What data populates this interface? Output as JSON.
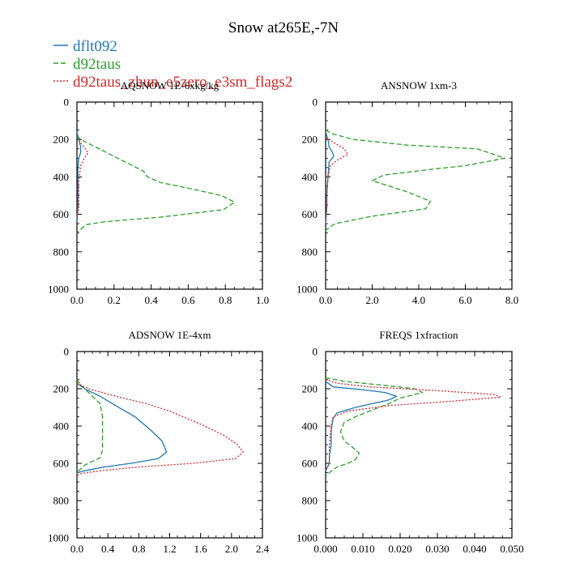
{
  "figure": {
    "title": "Snow at265E,-7N"
  },
  "legend": [
    {
      "name": "dflt092",
      "color": "#1f77b4",
      "dash": "solid"
    },
    {
      "name": "d92taus",
      "color": "#2ca02c",
      "dash": "dashed"
    },
    {
      "name": "d92taus_zhun_e5zero_e3sm_flags2",
      "color": "#d62728",
      "dash": "dotted"
    }
  ],
  "chart_data": [
    {
      "type": "line",
      "title": "AQSNOW  1E-6xkg/kg",
      "xlim": [
        0,
        1.0
      ],
      "ylim": [
        1000,
        0
      ],
      "xticks": [
        "0.0",
        "0.2",
        "0.4",
        "0.6",
        "0.8",
        "1.0"
      ],
      "yticks": [
        "0",
        "200",
        "400",
        "600",
        "800",
        "1000"
      ],
      "series": [
        {
          "name": "dflt092",
          "points": [
            [
              0.0,
              160
            ],
            [
              0.01,
              200
            ],
            [
              0.02,
              240
            ],
            [
              0.02,
              270
            ],
            [
              0.01,
              300
            ],
            [
              0.005,
              360
            ],
            [
              0.005,
              450
            ],
            [
              0.005,
              550
            ],
            [
              0.003,
              600
            ],
            [
              0.0,
              640
            ]
          ]
        },
        {
          "name": "d92taus",
          "points": [
            [
              0.0,
              180
            ],
            [
              0.02,
              200
            ],
            [
              0.06,
              220
            ],
            [
              0.22,
              300
            ],
            [
              0.36,
              370
            ],
            [
              0.38,
              400
            ],
            [
              0.45,
              430
            ],
            [
              0.6,
              460
            ],
            [
              0.78,
              500
            ],
            [
              0.85,
              535
            ],
            [
              0.79,
              575
            ],
            [
              0.45,
              615
            ],
            [
              0.15,
              640
            ],
            [
              0.05,
              655
            ],
            [
              0.02,
              680
            ],
            [
              0.0,
              700
            ]
          ]
        },
        {
          "name": "d92taus_zhun_e5zero_e3sm_flags2",
          "points": [
            [
              0.0,
              190
            ],
            [
              0.03,
              230
            ],
            [
              0.06,
              270
            ],
            [
              0.04,
              300
            ],
            [
              0.02,
              340
            ],
            [
              0.01,
              420
            ],
            [
              0.01,
              500
            ],
            [
              0.01,
              560
            ],
            [
              0.0,
              620
            ]
          ]
        }
      ]
    },
    {
      "type": "line",
      "title": "ANSNOW  1xm-3",
      "xlim": [
        0,
        8.0
      ],
      "ylim": [
        1000,
        0
      ],
      "xticks": [
        "0.0",
        "2.0",
        "4.0",
        "6.0",
        "8.0"
      ],
      "yticks": [
        "0",
        "200",
        "400",
        "600",
        "800",
        "1000"
      ],
      "series": [
        {
          "name": "dflt092",
          "points": [
            [
              0.0,
              160
            ],
            [
              0.1,
              200
            ],
            [
              0.15,
              240
            ],
            [
              0.3,
              270
            ],
            [
              0.35,
              290
            ],
            [
              0.15,
              320
            ],
            [
              0.1,
              400
            ],
            [
              0.05,
              500
            ],
            [
              0.05,
              560
            ],
            [
              0.0,
              650
            ]
          ]
        },
        {
          "name": "d92taus",
          "points": [
            [
              0.0,
              150
            ],
            [
              0.3,
              170
            ],
            [
              1.2,
              200
            ],
            [
              3.5,
              230
            ],
            [
              6.5,
              250
            ],
            [
              7.0,
              270
            ],
            [
              7.7,
              300
            ],
            [
              6.0,
              340
            ],
            [
              4.5,
              360
            ],
            [
              2.5,
              390
            ],
            [
              2.0,
              420
            ],
            [
              2.5,
              440
            ],
            [
              3.5,
              480
            ],
            [
              4.5,
              530
            ],
            [
              4.3,
              570
            ],
            [
              2.0,
              610
            ],
            [
              0.4,
              650
            ],
            [
              0.05,
              680
            ],
            [
              0.0,
              690
            ]
          ]
        },
        {
          "name": "d92taus_zhun_e5zero_e3sm_flags2",
          "points": [
            [
              0.0,
              190
            ],
            [
              0.4,
              220
            ],
            [
              0.8,
              250
            ],
            [
              0.95,
              280
            ],
            [
              0.5,
              310
            ],
            [
              0.2,
              340
            ],
            [
              0.1,
              400
            ],
            [
              0.05,
              500
            ],
            [
              0.05,
              560
            ],
            [
              0.0,
              650
            ]
          ]
        }
      ]
    },
    {
      "type": "line",
      "title": "ADSNOW  1E-4xm",
      "xlim": [
        0,
        2.4
      ],
      "ylim": [
        1000,
        0
      ],
      "xticks": [
        "0.0",
        "0.4",
        "0.8",
        "1.2",
        "1.6",
        "2.0",
        "2.4"
      ],
      "yticks": [
        "0",
        "200",
        "400",
        "600",
        "800",
        "1000"
      ],
      "series": [
        {
          "name": "dflt092",
          "points": [
            [
              0.0,
              170
            ],
            [
              0.1,
              200
            ],
            [
              0.3,
              240
            ],
            [
              0.5,
              290
            ],
            [
              0.75,
              350
            ],
            [
              0.95,
              420
            ],
            [
              1.1,
              480
            ],
            [
              1.16,
              540
            ],
            [
              1.05,
              575
            ],
            [
              0.7,
              600
            ],
            [
              0.35,
              620
            ],
            [
              0.1,
              640
            ],
            [
              0.0,
              650
            ]
          ]
        },
        {
          "name": "d92taus",
          "points": [
            [
              0.0,
              150
            ],
            [
              0.05,
              180
            ],
            [
              0.15,
              220
            ],
            [
              0.3,
              280
            ],
            [
              0.33,
              350
            ],
            [
              0.33,
              450
            ],
            [
              0.33,
              530
            ],
            [
              0.3,
              570
            ],
            [
              0.1,
              610
            ],
            [
              0.02,
              640
            ],
            [
              0.0,
              660
            ]
          ]
        },
        {
          "name": "d92taus_zhun_e5zero_e3sm_flags2",
          "points": [
            [
              0.0,
              170
            ],
            [
              0.15,
              200
            ],
            [
              0.5,
              240
            ],
            [
              0.9,
              280
            ],
            [
              1.2,
              320
            ],
            [
              1.6,
              390
            ],
            [
              1.9,
              450
            ],
            [
              2.08,
              500
            ],
            [
              2.15,
              540
            ],
            [
              2.05,
              575
            ],
            [
              1.5,
              600
            ],
            [
              0.8,
              620
            ],
            [
              0.3,
              640
            ],
            [
              0.05,
              655
            ],
            [
              0.0,
              665
            ]
          ]
        }
      ]
    },
    {
      "type": "line",
      "title": "FREQS  1xfraction",
      "xlim": [
        0,
        0.05
      ],
      "ylim": [
        1000,
        0
      ],
      "xticks": [
        "0.000",
        "0.010",
        "0.020",
        "0.030",
        "0.040",
        "0.050"
      ],
      "yticks": [
        "0",
        "200",
        "400",
        "600",
        "800",
        "1000"
      ],
      "series": [
        {
          "name": "dflt092",
          "points": [
            [
              0.0,
              160
            ],
            [
              0.002,
              190
            ],
            [
              0.01,
              205
            ],
            [
              0.016,
              220
            ],
            [
              0.019,
              240
            ],
            [
              0.017,
              260
            ],
            [
              0.008,
              300
            ],
            [
              0.003,
              330
            ],
            [
              0.002,
              360
            ],
            [
              0.0015,
              420
            ],
            [
              0.0015,
              500
            ],
            [
              0.001,
              560
            ],
            [
              0.001,
              600
            ],
            [
              0.0,
              640
            ]
          ]
        },
        {
          "name": "d92taus",
          "points": [
            [
              0.0,
              140
            ],
            [
              0.005,
              160
            ],
            [
              0.015,
              180
            ],
            [
              0.024,
              200
            ],
            [
              0.026,
              220
            ],
            [
              0.02,
              250
            ],
            [
              0.017,
              280
            ],
            [
              0.013,
              310
            ],
            [
              0.008,
              350
            ],
            [
              0.005,
              380
            ],
            [
              0.004,
              430
            ],
            [
              0.005,
              480
            ],
            [
              0.007,
              510
            ],
            [
              0.009,
              545
            ],
            [
              0.008,
              580
            ],
            [
              0.006,
              600
            ],
            [
              0.003,
              620
            ],
            [
              0.001,
              650
            ],
            [
              0.0,
              670
            ]
          ]
        },
        {
          "name": "d92taus_zhun_e5zero_e3sm_flags2",
          "points": [
            [
              0.0,
              150
            ],
            [
              0.003,
              170
            ],
            [
              0.012,
              190
            ],
            [
              0.03,
              210
            ],
            [
              0.045,
              230
            ],
            [
              0.047,
              245
            ],
            [
              0.035,
              265
            ],
            [
              0.017,
              290
            ],
            [
              0.006,
              320
            ],
            [
              0.002,
              350
            ],
            [
              0.0015,
              400
            ],
            [
              0.001,
              500
            ],
            [
              0.001,
              560
            ],
            [
              0.001,
              600
            ],
            [
              0.0,
              640
            ]
          ]
        }
      ]
    }
  ]
}
